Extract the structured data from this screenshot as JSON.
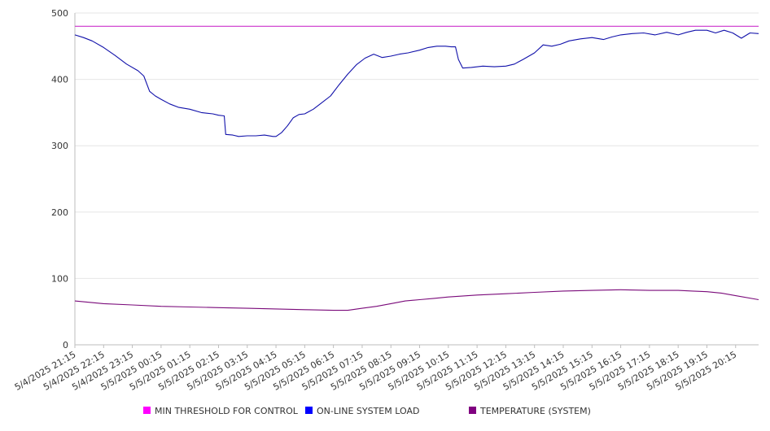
{
  "chart_data": {
    "type": "line",
    "title": "",
    "xlabel": "",
    "ylabel": "",
    "ylim": [
      0,
      500
    ],
    "yticks": [
      0,
      100,
      200,
      300,
      400,
      500
    ],
    "grid": true,
    "legend_position": "bottom",
    "categories": [
      "5/4/2025 21:15",
      "5/4/2025 22:15",
      "5/4/2025 23:15",
      "5/5/2025 00:15",
      "5/5/2025 01:15",
      "5/5/2025 02:15",
      "5/5/2025 03:15",
      "5/5/2025 04:15",
      "5/5/2025 05:15",
      "5/5/2025 06:15",
      "5/5/2025 07:15",
      "5/5/2025 08:15",
      "5/5/2025 09:15",
      "5/5/2025 10:15",
      "5/5/2025 11:15",
      "5/5/2025 12:15",
      "5/5/2025 13:15",
      "5/5/2025 14:15",
      "5/5/2025 15:15",
      "5/5/2025 16:15",
      "5/5/2025 17:15",
      "5/5/2025 18:15",
      "5/5/2025 19:15",
      "5/5/2025 20:15"
    ],
    "series": [
      {
        "name": "MIN THRESHOLD FOR CONTROL",
        "color": "#cc33cc",
        "points": [
          [
            0,
            480
          ],
          [
            23.8,
            480
          ]
        ]
      },
      {
        "name": "ON-LINE SYSTEM LOAD",
        "color": "#1111aa",
        "points": [
          [
            0,
            467
          ],
          [
            0.3,
            463
          ],
          [
            0.6,
            458
          ],
          [
            1.0,
            448
          ],
          [
            1.4,
            436
          ],
          [
            1.8,
            423
          ],
          [
            2.2,
            413
          ],
          [
            2.4,
            405
          ],
          [
            2.6,
            382
          ],
          [
            2.8,
            375
          ],
          [
            3.0,
            370
          ],
          [
            3.3,
            363
          ],
          [
            3.6,
            358
          ],
          [
            4.0,
            355
          ],
          [
            4.4,
            350
          ],
          [
            4.8,
            348
          ],
          [
            5.0,
            346
          ],
          [
            5.2,
            345
          ],
          [
            5.25,
            317
          ],
          [
            5.5,
            316
          ],
          [
            5.7,
            314
          ],
          [
            6.0,
            315
          ],
          [
            6.3,
            315
          ],
          [
            6.6,
            316
          ],
          [
            6.9,
            314
          ],
          [
            7.0,
            314
          ],
          [
            7.2,
            320
          ],
          [
            7.4,
            330
          ],
          [
            7.6,
            342
          ],
          [
            7.8,
            347
          ],
          [
            8.0,
            348
          ],
          [
            8.3,
            355
          ],
          [
            8.6,
            365
          ],
          [
            8.9,
            375
          ],
          [
            9.2,
            392
          ],
          [
            9.5,
            408
          ],
          [
            9.8,
            422
          ],
          [
            10.1,
            432
          ],
          [
            10.4,
            438
          ],
          [
            10.7,
            433
          ],
          [
            11.0,
            435
          ],
          [
            11.3,
            438
          ],
          [
            11.6,
            440
          ],
          [
            12.0,
            444
          ],
          [
            12.3,
            448
          ],
          [
            12.6,
            450
          ],
          [
            12.9,
            450
          ],
          [
            13.1,
            449
          ],
          [
            13.25,
            449
          ],
          [
            13.35,
            430
          ],
          [
            13.5,
            417
          ],
          [
            13.8,
            418
          ],
          [
            14.2,
            420
          ],
          [
            14.6,
            419
          ],
          [
            15.0,
            420
          ],
          [
            15.3,
            423
          ],
          [
            15.6,
            430
          ],
          [
            16.0,
            440
          ],
          [
            16.3,
            452
          ],
          [
            16.6,
            450
          ],
          [
            16.9,
            453
          ],
          [
            17.2,
            458
          ],
          [
            17.6,
            461
          ],
          [
            18.0,
            463
          ],
          [
            18.4,
            460
          ],
          [
            18.7,
            464
          ],
          [
            19.0,
            467
          ],
          [
            19.4,
            469
          ],
          [
            19.8,
            470
          ],
          [
            20.2,
            467
          ],
          [
            20.6,
            471
          ],
          [
            21.0,
            467
          ],
          [
            21.3,
            471
          ],
          [
            21.6,
            474
          ],
          [
            22.0,
            474
          ],
          [
            22.3,
            470
          ],
          [
            22.6,
            474
          ],
          [
            22.9,
            470
          ],
          [
            23.2,
            462
          ],
          [
            23.5,
            470
          ],
          [
            23.8,
            469
          ]
        ]
      },
      {
        "name": "TEMPERATURE (SYSTEM)",
        "color": "#7a0a7a",
        "points": [
          [
            0,
            66
          ],
          [
            1,
            62
          ],
          [
            2,
            60
          ],
          [
            3,
            58
          ],
          [
            4,
            57
          ],
          [
            5,
            56
          ],
          [
            6,
            55
          ],
          [
            7,
            54
          ],
          [
            8,
            53
          ],
          [
            9,
            52
          ],
          [
            9.5,
            52
          ],
          [
            10,
            55
          ],
          [
            10.5,
            58
          ],
          [
            11,
            62
          ],
          [
            11.5,
            66
          ],
          [
            12,
            68
          ],
          [
            12.5,
            70
          ],
          [
            13,
            72
          ],
          [
            14,
            75
          ],
          [
            15,
            77
          ],
          [
            16,
            79
          ],
          [
            17,
            81
          ],
          [
            18,
            82
          ],
          [
            19,
            83
          ],
          [
            20,
            82
          ],
          [
            21,
            82
          ],
          [
            21.5,
            81
          ],
          [
            22,
            80
          ],
          [
            22.5,
            78
          ],
          [
            23,
            74
          ],
          [
            23.8,
            68
          ]
        ]
      }
    ]
  }
}
